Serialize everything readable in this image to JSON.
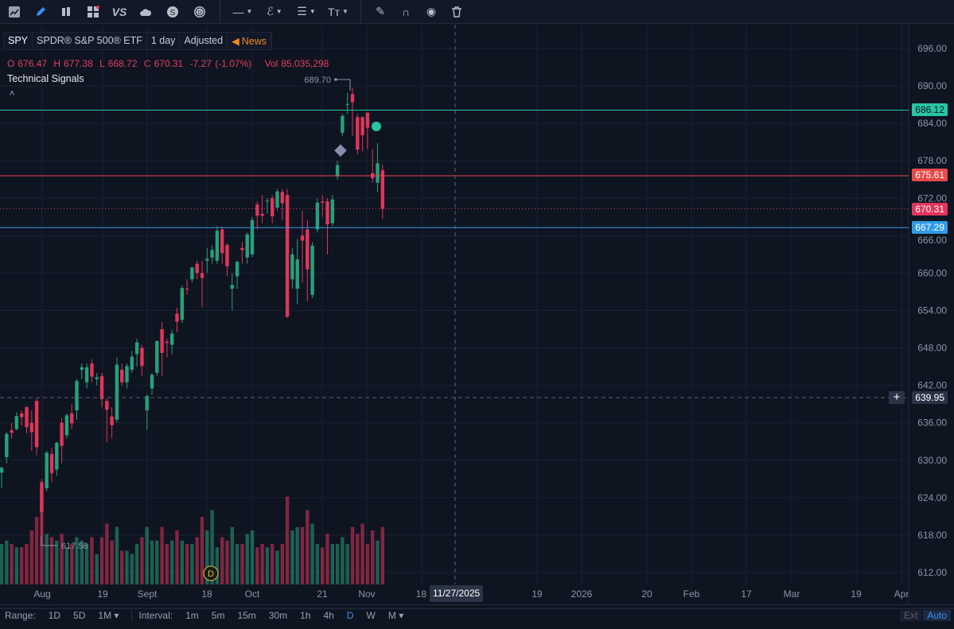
{
  "toolbar": {
    "items": [
      "chart-type-icon",
      "pencil-icon",
      "candles-icon",
      "widgets-icon",
      "compare-icon",
      "cloud-icon",
      "dollar-icon",
      "dividend-icon",
      "line-tool-icon",
      "path-tool-icon",
      "fib-tool-icon",
      "text-tool-icon",
      "freehand-icon",
      "magnet-icon",
      "eye-icon",
      "trash-icon"
    ],
    "compare_label": "VS"
  },
  "legend": {
    "symbol": "SPY",
    "name": "SPDR® S&P 500® ETF",
    "interval": "1 day",
    "adjustment": "Adjusted",
    "news": "News"
  },
  "ohlc": {
    "o_label": "O",
    "o": "676.47",
    "h_label": "H",
    "h": "677.38",
    "l_label": "L",
    "l": "668.72",
    "c_label": "C",
    "c": "670.31",
    "change": "-7.27 (-1.07%)",
    "vol_label": "Vol",
    "vol": "85,035,298"
  },
  "indicator": {
    "name": "Technical Signals",
    "collapse": "˄"
  },
  "annotations": {
    "high": "689.70",
    "low": "617.58",
    "dividend_marker": "D"
  },
  "price_tags": {
    "teal": "686.12",
    "red": "675.61",
    "last": "670.31",
    "blue": "667.29",
    "crosshair": "639.95",
    "crosshair_plus": "+"
  },
  "colors": {
    "up": "#26a17b",
    "down": "#e0355a",
    "teal": "#26c6a0",
    "red": "#e84a4a",
    "blue": "#2f9be6",
    "bg": "#0f1421"
  },
  "crosshair_date": "11/27/2025",
  "chart_data": {
    "type": "candlestick",
    "y_ticks": [
      "696.00",
      "690.00",
      "684.00",
      "678.00",
      "672.00",
      "666.00",
      "660.00",
      "654.00",
      "648.00",
      "642.00",
      "636.00",
      "630.00",
      "624.00",
      "618.00",
      "612.00"
    ],
    "x_labels": [
      "Aug",
      "19",
      "Sept",
      "18",
      "Oct",
      "21",
      "Nov",
      "18",
      "19",
      "2026",
      "20",
      "Feb",
      "17",
      "Mar",
      "19",
      "Apr"
    ],
    "candles": [
      [
        628.0,
        629.0,
        625.5,
        628.8,
        60
      ],
      [
        630.5,
        634.5,
        629.5,
        634.2,
        65
      ],
      [
        634.8,
        636.0,
        633.5,
        634.4,
        60
      ],
      [
        635.0,
        637.7,
        634.8,
        637.1,
        55
      ],
      [
        637.5,
        638.0,
        635.5,
        636.9,
        55
      ],
      [
        638.5,
        638.7,
        634.3,
        635.3,
        60
      ],
      [
        636.0,
        638.0,
        631.5,
        634.5,
        80
      ],
      [
        639.5,
        639.9,
        630.8,
        632.1,
        100
      ],
      [
        626.5,
        627.0,
        617.6,
        621.7,
        120
      ],
      [
        625.5,
        631.5,
        625.0,
        631.2,
        75
      ],
      [
        631.0,
        632.0,
        626.5,
        627.9,
        70
      ],
      [
        628.5,
        633.0,
        627.5,
        632.8,
        65
      ],
      [
        636.0,
        636.8,
        629.5,
        632.3,
        75
      ],
      [
        634.0,
        637.5,
        633.5,
        637.2,
        55
      ],
      [
        637.5,
        639.0,
        635.0,
        635.9,
        60
      ],
      [
        638.0,
        643.0,
        636.5,
        642.7,
        70
      ],
      [
        644.5,
        645.5,
        643.0,
        644.9,
        65
      ],
      [
        642.5,
        645.5,
        641.5,
        644.9,
        60
      ],
      [
        645.5,
        646.2,
        642.5,
        643.4,
        70
      ],
      [
        643.0,
        644.0,
        642.0,
        643.3,
        45
      ],
      [
        643.5,
        644.0,
        638.5,
        639.8,
        70
      ],
      [
        639.5,
        639.9,
        632.9,
        638.1,
        90
      ],
      [
        637.0,
        638.5,
        633.5,
        635.6,
        65
      ],
      [
        636.5,
        646.5,
        636.0,
        645.3,
        85
      ],
      [
        644.5,
        645.5,
        642.0,
        642.5,
        50
      ],
      [
        642.5,
        645.5,
        641.5,
        645.1,
        50
      ],
      [
        644.5,
        647.5,
        644.0,
        646.6,
        45
      ],
      [
        647.0,
        649.5,
        645.0,
        648.9,
        60
      ],
      [
        648.0,
        648.5,
        643.5,
        645.1,
        70
      ],
      [
        638.0,
        640.5,
        634.9,
        640.3,
        85
      ],
      [
        641.5,
        644.0,
        640.5,
        643.7,
        65
      ],
      [
        644.0,
        649.2,
        643.5,
        649.1,
        65
      ],
      [
        651.0,
        652.2,
        643.5,
        647.2,
        85
      ],
      [
        649.0,
        649.5,
        646.5,
        648.8,
        60
      ],
      [
        648.5,
        650.9,
        647.0,
        650.3,
        65
      ],
      [
        653.5,
        654.5,
        650.5,
        652.2,
        80
      ],
      [
        652.5,
        658.0,
        652.0,
        657.6,
        65
      ],
      [
        657.5,
        659.0,
        656.5,
        657.4,
        60
      ],
      [
        659.0,
        661.0,
        658.5,
        660.9,
        60
      ],
      [
        661.5,
        662.0,
        659.0,
        660.0,
        70
      ],
      [
        660.0,
        662.0,
        654.5,
        659.2,
        100
      ],
      [
        662.0,
        664.0,
        660.0,
        662.3,
        80
      ],
      [
        662.5,
        664.5,
        661.5,
        663.7,
        110
      ],
      [
        662.0,
        667.5,
        661.5,
        666.8,
        55
      ],
      [
        667.0,
        667.5,
        661.5,
        663.2,
        70
      ],
      [
        664.5,
        664.8,
        659.5,
        661.1,
        65
      ],
      [
        657.5,
        660.0,
        654.0,
        658.1,
        85
      ],
      [
        659.5,
        662.0,
        657.5,
        661.8,
        60
      ],
      [
        664.0,
        665.0,
        661.5,
        663.7,
        60
      ],
      [
        662.5,
        666.5,
        661.5,
        666.2,
        75
      ],
      [
        663.0,
        669.0,
        662.5,
        668.5,
        80
      ],
      [
        671.0,
        671.5,
        667.0,
        669.2,
        55
      ],
      [
        669.5,
        672.5,
        668.0,
        669.2,
        60
      ],
      [
        671.5,
        672.0,
        669.5,
        671.6,
        55
      ],
      [
        672.0,
        672.5,
        668.0,
        669.1,
        60
      ],
      [
        670.5,
        673.5,
        670.0,
        673.1,
        50
      ],
      [
        673.0,
        673.5,
        668.5,
        671.2,
        60
      ],
      [
        672.5,
        673.5,
        652.8,
        653.0,
        130
      ],
      [
        659.0,
        664.0,
        657.5,
        663.0,
        80
      ],
      [
        657.5,
        665.5,
        655.0,
        662.2,
        85
      ],
      [
        666.0,
        670.0,
        658.5,
        665.2,
        85
      ],
      [
        667.0,
        668.5,
        655.5,
        660.6,
        110
      ],
      [
        656.5,
        665.0,
        656.0,
        664.4,
        90
      ],
      [
        667.0,
        672.0,
        666.5,
        671.3,
        60
      ],
      [
        671.5,
        672.5,
        669.0,
        671.3,
        55
      ],
      [
        671.5,
        672.0,
        663.0,
        667.8,
        75
      ],
      [
        668.0,
        672.5,
        667.5,
        671.8,
        60
      ],
      [
        675.5,
        678.0,
        675.0,
        677.3,
        60
      ],
      [
        682.5,
        685.5,
        682.0,
        685.2,
        70
      ],
      [
        687.0,
        688.9,
        685.5,
        687.1,
        60
      ],
      [
        688.7,
        689.7,
        682.0,
        687.4,
        85
      ],
      [
        685.0,
        685.5,
        679.0,
        679.8,
        75
      ],
      [
        685.0,
        685.1,
        679.5,
        682.1,
        90
      ],
      [
        685.7,
        685.8,
        679.9,
        683.3,
        60
      ],
      [
        676.0,
        679.9,
        674.5,
        675.2,
        80
      ],
      [
        674.5,
        680.8,
        673.0,
        677.6,
        65
      ],
      [
        676.5,
        677.4,
        668.7,
        670.3,
        85
      ]
    ],
    "candle_fields": [
      "open",
      "high",
      "low",
      "close",
      "volume_millions"
    ],
    "y_range": [
      612,
      696
    ]
  },
  "bottom": {
    "range_label": "Range:",
    "ranges": [
      "1D",
      "5D",
      "1M ▾"
    ],
    "interval_label": "Interval:",
    "intervals": [
      "1m",
      "5m",
      "15m",
      "30m",
      "1h",
      "4h",
      "D",
      "W",
      "M ▾"
    ],
    "active_interval": "D",
    "ext": "Ext",
    "auto": "Auto"
  }
}
